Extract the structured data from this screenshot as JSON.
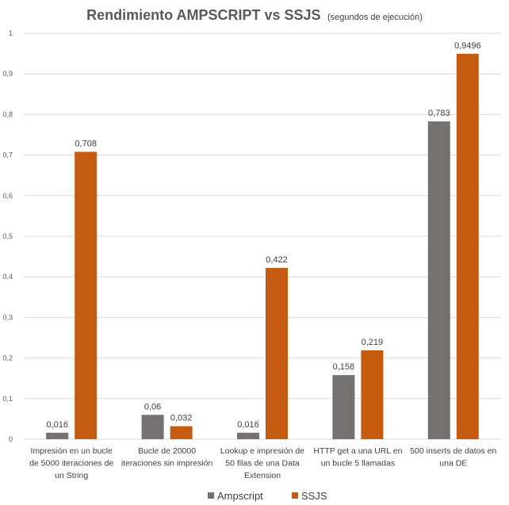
{
  "chart_data": {
    "type": "bar",
    "title": "Rendimiento AMPSCRIPT vs SSJS",
    "subtitle": "(segundos de ejecución)",
    "xlabel": "",
    "ylabel": "",
    "ylim": [
      0,
      1
    ],
    "yticks": [
      "0",
      "0,1",
      "0,2",
      "0,3",
      "0,4",
      "0,5",
      "0,6",
      "0,7",
      "0,8",
      "0,9",
      "1"
    ],
    "grid": true,
    "legend_position": "bottom",
    "categories": [
      [
        "Impresión en un bucle",
        "de 5000 iteraciones de",
        "un String"
      ],
      [
        "Bucle de 20000",
        "iteraciones sin impresión"
      ],
      [
        "Lookup e impresión de",
        "50 filas de una Data",
        "Extension"
      ],
      [
        "HTTP get a una URL en",
        "un bucle 5 llamadas"
      ],
      [
        "500 inserts de datos en",
        "una DE"
      ]
    ],
    "series": [
      {
        "name": "Ampscript",
        "color": "#767171",
        "values": [
          0.016,
          0.06,
          0.016,
          0.158,
          0.783
        ],
        "labels": [
          "0,016",
          "0,06",
          "0,016",
          "0,158",
          "0,783"
        ]
      },
      {
        "name": "SSJS",
        "color": "#C55A11",
        "values": [
          0.708,
          0.032,
          0.422,
          0.219,
          0.9496
        ],
        "labels": [
          "0,708",
          "0,032",
          "0,422",
          "0,219",
          "0,9496"
        ]
      }
    ]
  }
}
